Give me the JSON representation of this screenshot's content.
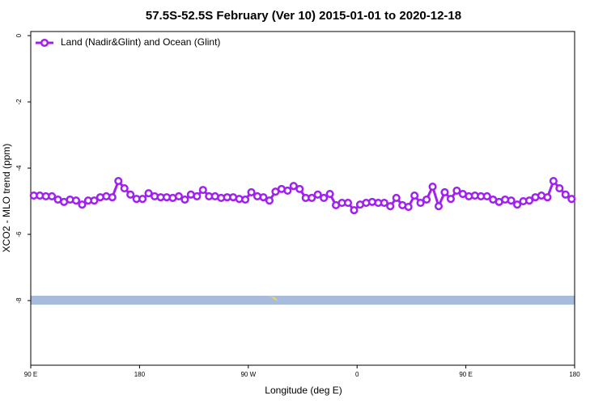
{
  "chart_data": {
    "type": "line",
    "title": "57.5S-52.5S February (Ver 10)   2015-01-01 to 2020-12-18",
    "x_label": "Longitude (deg E)",
    "y_label": "XCO2 - MLO trend (ppm)",
    "xlim": [
      90,
      540
    ],
    "xticks": [
      {
        "value": 90,
        "label": "90 E"
      },
      180,
      {
        "value": 270,
        "label": "90 W"
      },
      {
        "value": 360,
        "label": "0"
      },
      {
        "value": 450,
        "label": "90 E"
      },
      {
        "value": 540,
        "label": "180"
      }
    ],
    "ylim": [
      -10,
      0.1
    ],
    "yticks": [
      0,
      -2,
      -4,
      -6,
      -8
    ],
    "legend": "top-left",
    "x": [
      92.5,
      97.5,
      102.5,
      107.5,
      112.5,
      117.5,
      122.5,
      127.5,
      132.5,
      137.5,
      142.5,
      147.5,
      152.5,
      157.5,
      162.5,
      167.5,
      172.5,
      177.5,
      182.5,
      187.5,
      192.5,
      197.5,
      202.5,
      207.5,
      212.5,
      217.5,
      222.5,
      227.5,
      232.5,
      237.5,
      242.5,
      247.5,
      252.5,
      257.5,
      262.5,
      267.5,
      272.5,
      277.5,
      282.5,
      287.5,
      292.5,
      297.5,
      302.5,
      307.5,
      312.5,
      317.5,
      322.5,
      327.5,
      332.5,
      337.5,
      342.5,
      347.5,
      352.5,
      357.5,
      362.5,
      367.5,
      372.5,
      377.5,
      382.5,
      387.5,
      392.5,
      397.5,
      402.5,
      407.5,
      412.5,
      417.5,
      422.5,
      427.5,
      432.5,
      437.5,
      442.5,
      447.5,
      452.5,
      457.5,
      462.5,
      467.5,
      472.5,
      477.5,
      482.5,
      487.5,
      492.5,
      497.5,
      502.5,
      507.5,
      512.5,
      517.5,
      522.5,
      527.5,
      532.5,
      537.5
    ],
    "series": [
      {
        "name": "Land (Nadir&Glint) and Ocean (Glint)",
        "color": "#a020f0",
        "values": [
          -4.83,
          -4.83,
          -4.85,
          -4.85,
          -4.95,
          -5.02,
          -4.95,
          -4.98,
          -5.1,
          -4.98,
          -4.98,
          -4.88,
          -4.85,
          -4.88,
          -4.39,
          -4.61,
          -4.8,
          -4.93,
          -4.93,
          -4.76,
          -4.85,
          -4.88,
          -4.88,
          -4.9,
          -4.85,
          -4.95,
          -4.8,
          -4.85,
          -4.66,
          -4.85,
          -4.85,
          -4.9,
          -4.88,
          -4.88,
          -4.93,
          -4.95,
          -4.73,
          -4.85,
          -4.88,
          -4.98,
          -4.71,
          -4.63,
          -4.68,
          -4.54,
          -4.63,
          -4.9,
          -4.9,
          -4.8,
          -4.9,
          -4.78,
          -5.12,
          -5.05,
          -5.05,
          -5.27,
          -5.1,
          -5.05,
          -5.02,
          -5.05,
          -5.05,
          -5.15,
          -4.9,
          -5.12,
          -5.17,
          -4.83,
          -5.05,
          -4.95,
          -4.56,
          -5.15,
          -4.73,
          -4.93,
          -4.68,
          -4.78,
          -4.85,
          -4.83,
          -4.85,
          -4.85,
          -4.95,
          -5.02,
          -4.95,
          -4.98,
          -5.1,
          -5.0,
          -4.98,
          -4.88,
          -4.83,
          -4.88,
          -4.39,
          -4.61,
          -4.8,
          -4.93
        ]
      }
    ]
  }
}
